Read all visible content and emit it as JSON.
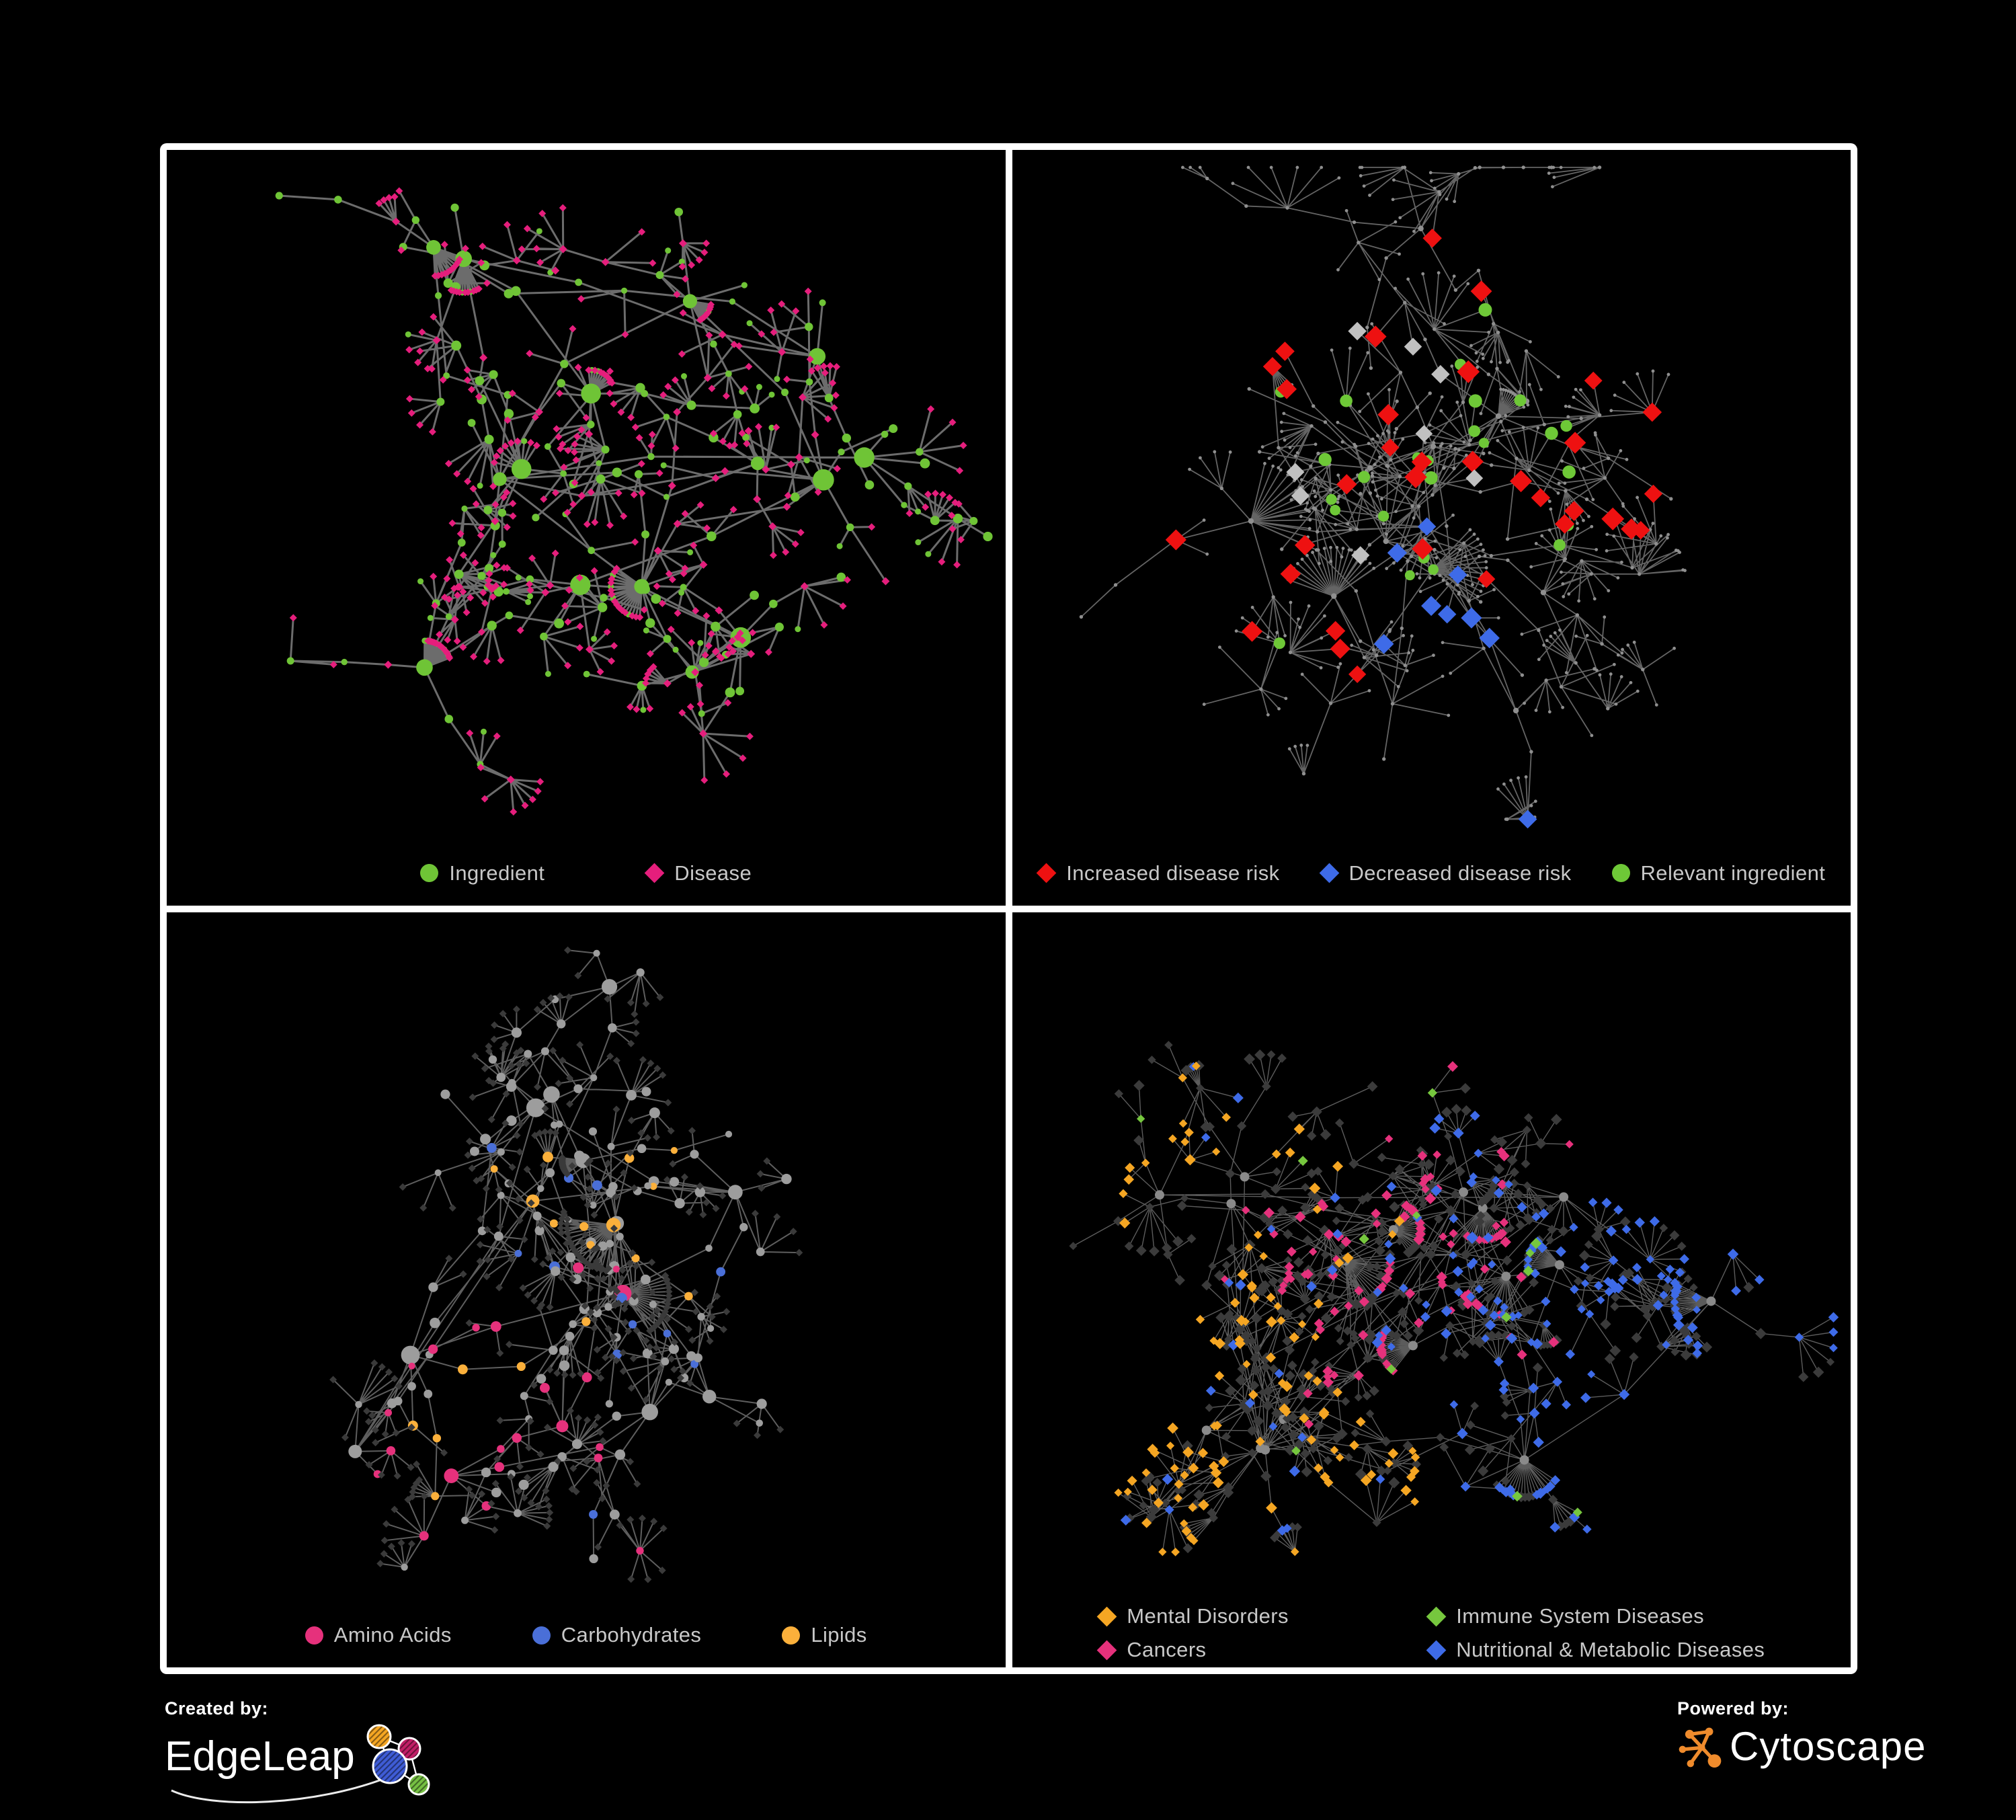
{
  "canvas": {
    "background": "#000000",
    "frame_color": "#ffffff"
  },
  "panels": [
    {
      "legend": [
        {
          "label": "Ingredient",
          "shape": "circle",
          "color": "#6fc436"
        },
        {
          "label": "Disease",
          "shape": "diamond",
          "color": "#e51e7c"
        }
      ],
      "style": {
        "edge_color": "#7f7f7f",
        "ingredient_color": "#6fc436",
        "disease_color": "#e51e7c"
      }
    },
    {
      "legend": [
        {
          "label": "Increased disease risk",
          "shape": "diamond",
          "color": "#ee1111"
        },
        {
          "label": "Decreased disease risk",
          "shape": "diamond",
          "color": "#3e6be8"
        },
        {
          "label": "Relevant ingredient",
          "shape": "circle",
          "color": "#6ec837"
        }
      ],
      "style": {
        "edge_color": "#6f6f6f",
        "node_color": "#8f8f8f",
        "increased_color": "#ee1111",
        "decreased_color": "#3e6be8",
        "neutral_diamond_color": "#c0c0c0",
        "ingredient_color": "#6ec837"
      }
    },
    {
      "legend": [
        {
          "label": "Amino Acids",
          "shape": "circle",
          "color": "#e6317c"
        },
        {
          "label": "Carbohydrates",
          "shape": "circle",
          "color": "#4a6fd8"
        },
        {
          "label": "Lipids",
          "shape": "circle",
          "color": "#fbb03b"
        }
      ],
      "style": {
        "edge_color": "#787878",
        "node_color": "#9d9d9d",
        "leaf_color": "#3a3a3a",
        "amino_acids_color": "#e6317c",
        "carbohydrates_color": "#4a6fd8",
        "lipids_color": "#fbb03b"
      }
    },
    {
      "legend": [
        {
          "label": "Mental Disorders",
          "shape": "diamond",
          "color": "#f5a623"
        },
        {
          "label": "Immune System Diseases",
          "shape": "diamond",
          "color": "#76c73e"
        },
        {
          "label": "Cancers",
          "shape": "diamond",
          "color": "#e6317c"
        },
        {
          "label": "Nutritional & Metabolic Diseases",
          "shape": "diamond",
          "color": "#3e6be8"
        }
      ],
      "style": {
        "edge_color": "#9a9a9a",
        "node_color": "#8a8a8a",
        "leaf_color": "#3b3b3b",
        "mental_disorders_color": "#f5a623",
        "immune_system_color": "#76c73e",
        "cancers_color": "#e6317c",
        "nutritional_metabolic_color": "#3e6be8"
      }
    }
  ],
  "footer": {
    "created_by_label": "Created by:",
    "created_by_brand": "EdgeLeap",
    "powered_by_label": "Powered by:",
    "powered_by_brand": "Cytoscape",
    "edgeleap_logo_colors": [
      "#f5a623",
      "#c21f67",
      "#3f5cd6",
      "#76c043"
    ],
    "cytoscape_logo_color": "#ef8b2c"
  }
}
